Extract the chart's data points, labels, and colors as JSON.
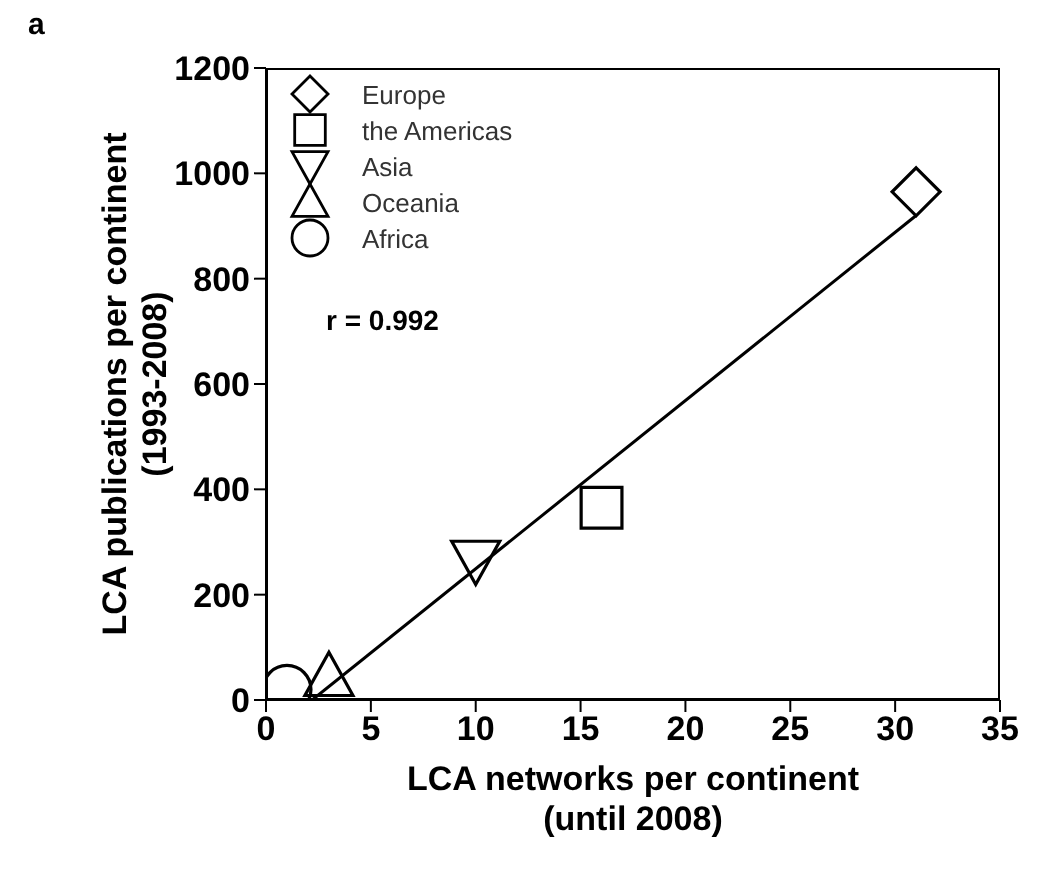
{
  "chart_data": {
    "type": "scatter",
    "title": "a",
    "xlabel": "LCA networks per continent\n(until 2008)",
    "ylabel": "LCA publications per continent\n(1993-2008)",
    "xlim": [
      0,
      35
    ],
    "xticks": [
      0,
      5,
      10,
      15,
      20,
      25,
      30,
      35
    ],
    "ylim": [
      0,
      1200
    ],
    "yticks": [
      0,
      200,
      400,
      600,
      800,
      1000,
      1200
    ],
    "grid": false,
    "legend": "top left",
    "annotations": [
      "r = 0.992"
    ],
    "series": [
      {
        "name": "Europe",
        "color": "#000000",
        "marker": "diamond",
        "x": [
          31
        ],
        "values": [
          965
        ]
      },
      {
        "name": "the Americas",
        "color": "#000000",
        "marker": "square",
        "x": [
          16
        ],
        "values": [
          365
        ]
      },
      {
        "name": "Asia",
        "color": "#000000",
        "marker": "triangle-down",
        "x": [
          10
        ],
        "values": [
          265
        ]
      },
      {
        "name": "Oceania",
        "color": "#000000",
        "marker": "triangle",
        "x": [
          3
        ],
        "values": [
          45
        ]
      },
      {
        "name": "Africa",
        "color": "#000000",
        "marker": "circle",
        "x": [
          1
        ],
        "values": [
          20
        ]
      },
      {
        "type": "line",
        "color": "#000000",
        "marker": "none",
        "x": [
          2.2,
          31
        ],
        "values": [
          0,
          920
        ]
      }
    ]
  }
}
